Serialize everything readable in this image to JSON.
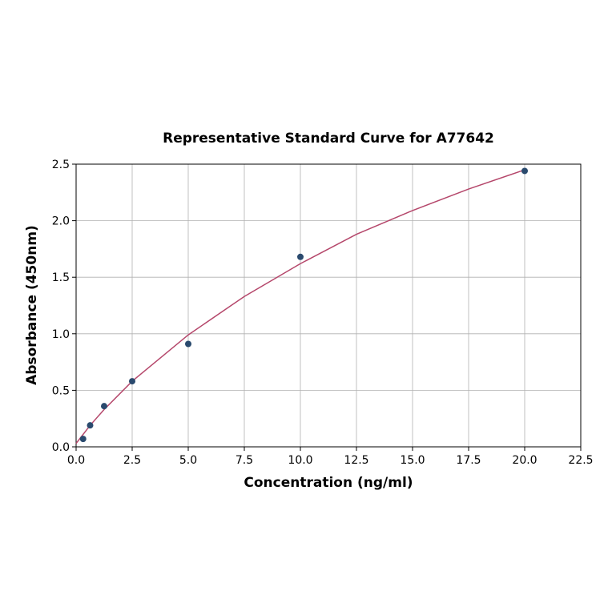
{
  "chart_data": {
    "type": "scatter",
    "title": "Representative Standard Curve for A77642",
    "x_label": "Concentration (ng/ml)",
    "y_label": "Absorbance (450nm)",
    "xlim": [
      0,
      22.5
    ],
    "ylim": [
      0,
      2.5
    ],
    "xticks": [
      {
        "value": 0,
        "label": "0.0"
      },
      {
        "value": 2.5,
        "label": "2.5"
      },
      {
        "value": 5,
        "label": "5.0"
      },
      {
        "value": 7.5,
        "label": "7.5"
      },
      {
        "value": 10,
        "label": "10.0"
      },
      {
        "value": 12.5,
        "label": "12.5"
      },
      {
        "value": 15,
        "label": "15.0"
      },
      {
        "value": 17.5,
        "label": "17.5"
      },
      {
        "value": 20,
        "label": "20.0"
      },
      {
        "value": 22.5,
        "label": "22.5"
      }
    ],
    "yticks": [
      {
        "value": 0,
        "label": "0.0"
      },
      {
        "value": 0.5,
        "label": "0.5"
      },
      {
        "value": 1,
        "label": "1.0"
      },
      {
        "value": 1.5,
        "label": "1.5"
      },
      {
        "value": 2,
        "label": "2.0"
      },
      {
        "value": 2.5,
        "label": "2.5"
      }
    ],
    "grid": true,
    "series": [
      {
        "type": "line",
        "color": "#b5476b",
        "x": [
          0,
          0.625,
          1.25,
          2.5,
          5,
          7.5,
          10,
          12.5,
          15,
          17.5,
          20
        ],
        "values": [
          0.03,
          0.19,
          0.33,
          0.58,
          0.99,
          1.33,
          1.62,
          1.88,
          2.09,
          2.28,
          2.45
        ]
      },
      {
        "type": "scatter",
        "color": "#2a4a6e",
        "x": [
          0.3125,
          0.625,
          1.25,
          2.5,
          5,
          10,
          20
        ],
        "values": [
          0.07,
          0.19,
          0.36,
          0.58,
          0.91,
          1.68,
          2.44
        ]
      }
    ]
  }
}
